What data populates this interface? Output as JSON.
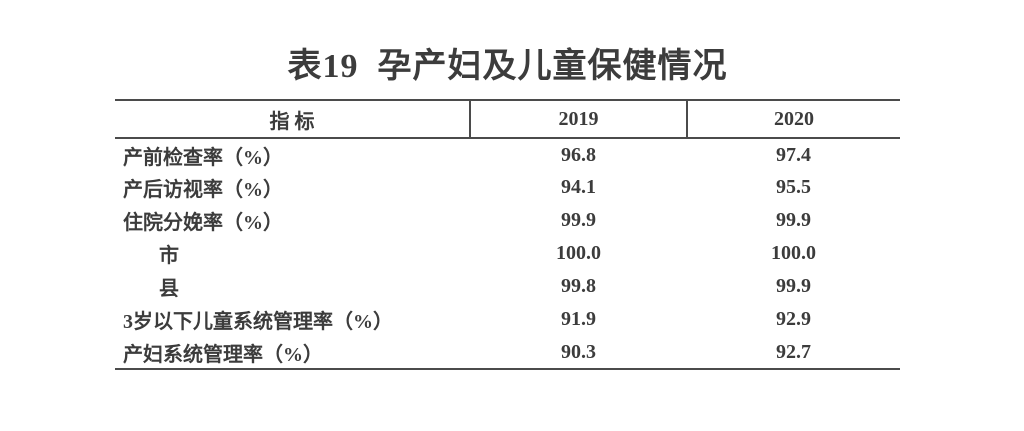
{
  "page": {
    "background": "#ffffff",
    "text_color": "#3c3c3c",
    "rule_color": "#4b4b4b"
  },
  "table": {
    "title": "表19  孕产妇及儿童保健情况",
    "columns": {
      "indicator": "指 标",
      "y2019": "2019",
      "y2020": "2020"
    },
    "rows": [
      {
        "label": "产前检查率（%）",
        "indent": false,
        "v2019": "96.8",
        "v2020": "97.4"
      },
      {
        "label": "产后访视率（%）",
        "indent": false,
        "v2019": "94.1",
        "v2020": "95.5"
      },
      {
        "label": "住院分娩率（%）",
        "indent": false,
        "v2019": "99.9",
        "v2020": "99.9"
      },
      {
        "label": "市",
        "indent": true,
        "v2019": "100.0",
        "v2020": "100.0"
      },
      {
        "label": "县",
        "indent": true,
        "v2019": "99.8",
        "v2020": "99.9"
      },
      {
        "label": "3岁以下儿童系统管理率（%）",
        "indent": false,
        "v2019": "91.9",
        "v2020": "92.9"
      },
      {
        "label": "产妇系统管理率（%）",
        "indent": false,
        "v2019": "90.3",
        "v2020": "92.7"
      }
    ]
  },
  "chart_data": {
    "type": "table",
    "title": "表19  孕产妇及儿童保健情况",
    "categories": [
      "产前检查率（%）",
      "产后访视率（%）",
      "住院分娩率（%）",
      "市",
      "县",
      "3岁以下儿童系统管理率（%）",
      "产妇系统管理率（%）"
    ],
    "series": [
      {
        "name": "2019",
        "values": [
          96.8,
          94.1,
          99.9,
          100.0,
          99.8,
          91.9,
          90.3
        ]
      },
      {
        "name": "2020",
        "values": [
          97.4,
          95.5,
          99.9,
          100.0,
          99.9,
          92.9,
          92.7
        ]
      }
    ]
  }
}
